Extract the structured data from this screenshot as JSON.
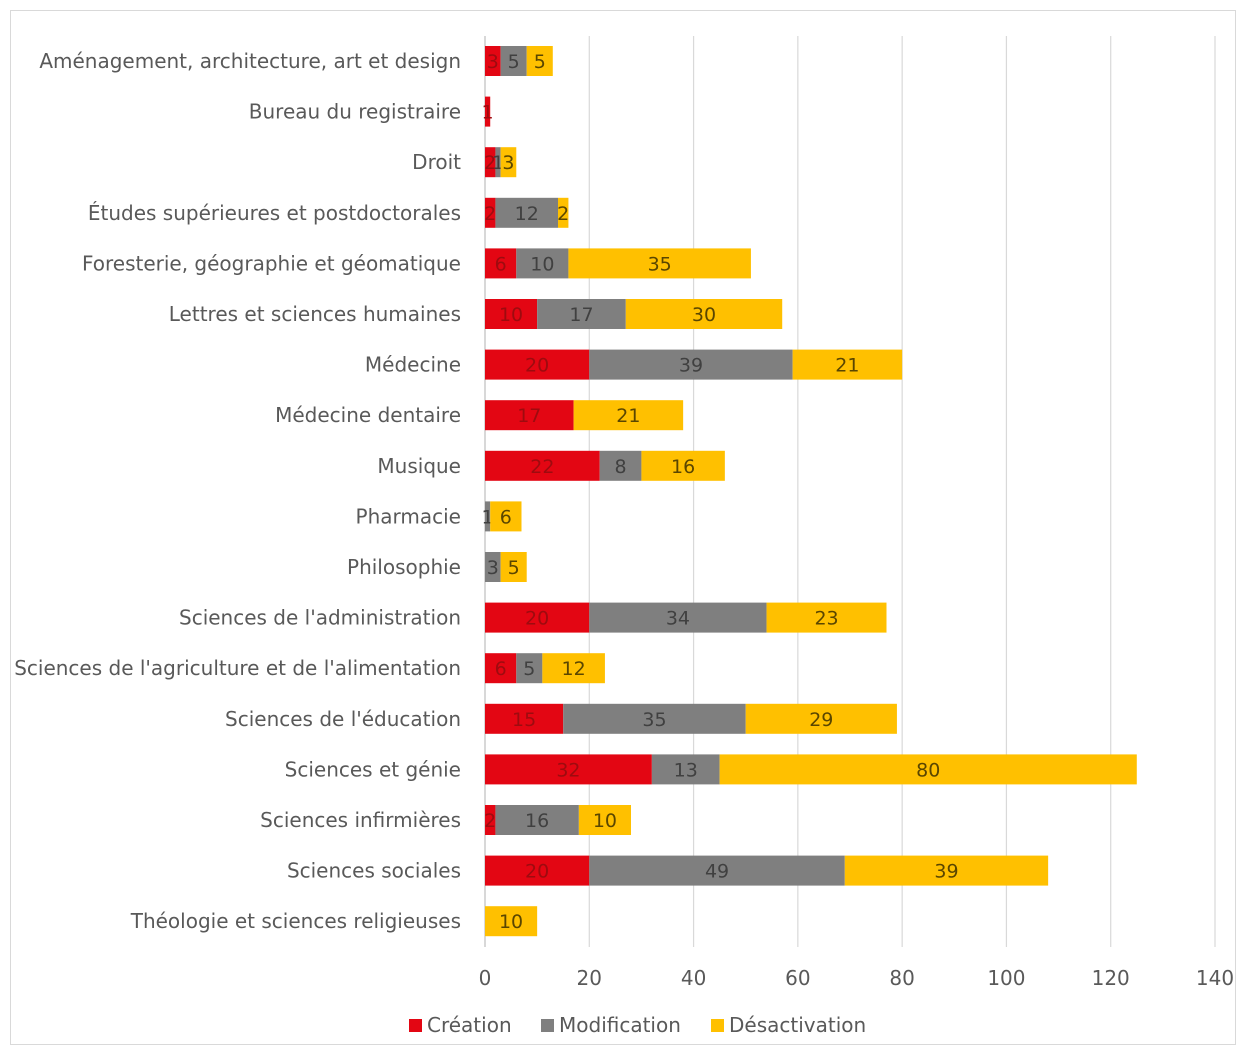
{
  "chart_data": {
    "type": "bar",
    "orientation": "horizontal",
    "stacked": true,
    "title": "",
    "xlabel": "",
    "ylabel": "",
    "xlim": [
      0,
      140
    ],
    "x_ticks": [
      0,
      20,
      40,
      60,
      80,
      100,
      120,
      140
    ],
    "grid": true,
    "legend_position": "bottom",
    "categories": [
      "Aménagement, architecture, art et design",
      "Bureau du registraire",
      "Droit",
      "Études supérieures et postdoctorales",
      "Foresterie, géographie et géomatique",
      "Lettres et sciences humaines",
      "Médecine",
      "Médecine dentaire",
      "Musique",
      "Pharmacie",
      "Philosophie",
      "Sciences de l'administration",
      "Sciences de l'agriculture et de l'alimentation",
      "Sciences de l'éducation",
      "Sciences et génie",
      "Sciences infirmières",
      "Sciences sociales",
      "Théologie et sciences religieuses"
    ],
    "series": [
      {
        "name": "Création",
        "color": "#e30613",
        "label_color": "#9e0b0f",
        "values": [
          3,
          1,
          2,
          2,
          6,
          10,
          20,
          17,
          22,
          0,
          0,
          20,
          6,
          15,
          32,
          2,
          20,
          0
        ]
      },
      {
        "name": "Modification",
        "color": "#7f7f7f",
        "label_color": "#404040",
        "values": [
          5,
          0,
          1,
          12,
          10,
          17,
          39,
          0,
          8,
          1,
          3,
          34,
          5,
          35,
          13,
          16,
          49,
          0
        ]
      },
      {
        "name": "Désactivation",
        "color": "#ffc000",
        "label_color": "#5a4600",
        "values": [
          5,
          0,
          3,
          2,
          35,
          30,
          21,
          21,
          16,
          6,
          5,
          23,
          12,
          29,
          80,
          10,
          39,
          10
        ]
      }
    ]
  }
}
